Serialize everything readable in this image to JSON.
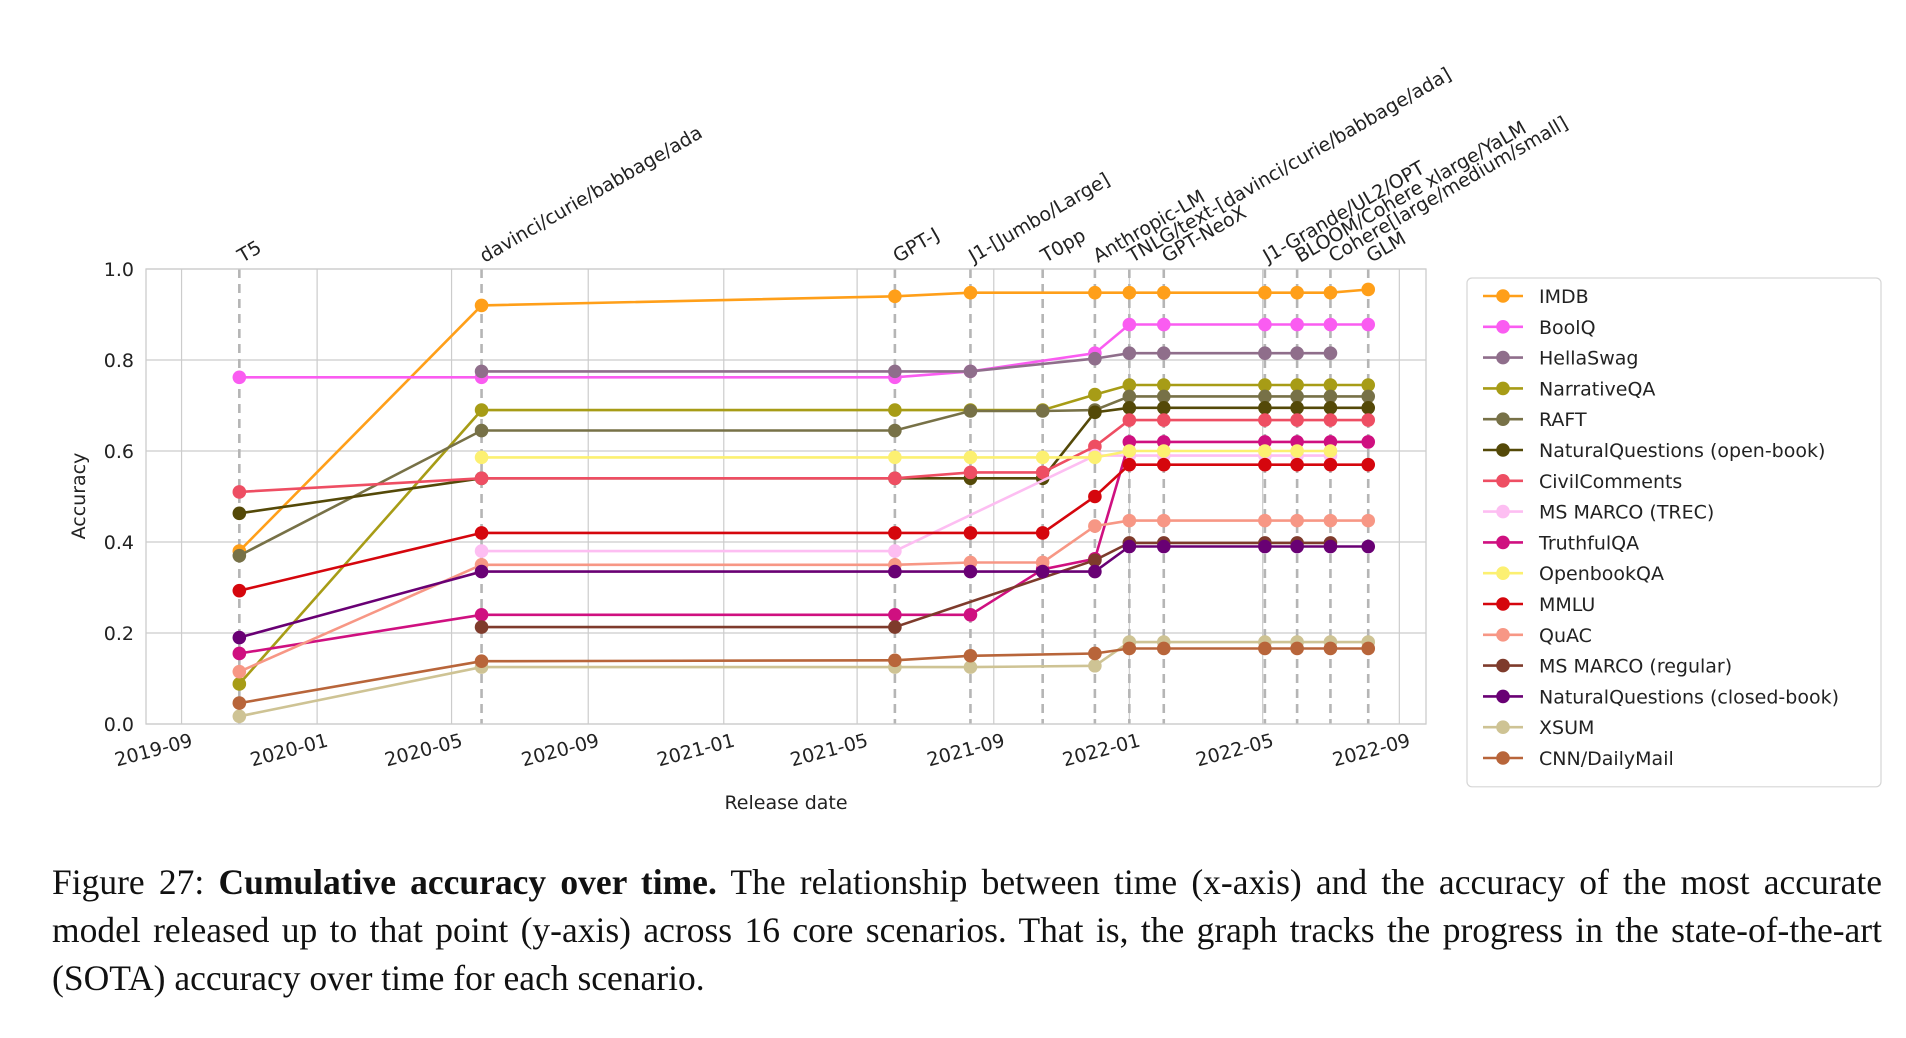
{
  "chart_data": {
    "type": "line",
    "xlabel": "Release date",
    "ylabel": "Accuracy",
    "ylim": [
      0.0,
      1.0
    ],
    "xlim": [
      "2019-07-31",
      "2022-09-25"
    ],
    "x_ticks": [
      "2019-09",
      "2020-01",
      "2020-05",
      "2020-09",
      "2021-01",
      "2021-05",
      "2021-09",
      "2022-01",
      "2022-05",
      "2022-09"
    ],
    "y_ticks": [
      "0.0",
      "0.2",
      "0.4",
      "0.6",
      "0.8",
      "1.0"
    ],
    "grid": true,
    "legend_position": "right",
    "model_releases": [
      {
        "label": "T5",
        "date": "2019-10-23"
      },
      {
        "label": "davinci/curie/babbage/ada",
        "date": "2020-05-28"
      },
      {
        "label": "GPT-J",
        "date": "2021-06-04"
      },
      {
        "label": "J1-[Jumbo/Large]",
        "date": "2021-08-11"
      },
      {
        "label": "T0pp",
        "date": "2021-10-15"
      },
      {
        "label": "Anthropic-LM",
        "date": "2021-12-01"
      },
      {
        "label": "TNLG/text-[davinci/curie/babbage/ada]",
        "date": "2022-01-01"
      },
      {
        "label": "GPT-NeoX",
        "date": "2022-02-01"
      },
      {
        "label": "J1-Grande/UL2/OPT",
        "date": "2022-05-03"
      },
      {
        "label": "BLOOM/Cohere xlarge/YaLM",
        "date": "2022-06-01"
      },
      {
        "label": "Cohere[large/medium/small]",
        "date": "2022-07-01"
      },
      {
        "label": "GLM",
        "date": "2022-08-04"
      }
    ],
    "series": [
      {
        "name": "IMDB",
        "color": "#ff9f19",
        "points": [
          [
            "2019-10-23",
            0.38
          ],
          [
            "2020-05-28",
            0.92
          ],
          [
            "2021-06-04",
            0.94
          ],
          [
            "2021-08-11",
            0.948
          ],
          [
            "2021-12-01",
            0.948
          ],
          [
            "2022-01-01",
            0.948
          ],
          [
            "2022-02-01",
            0.948
          ],
          [
            "2022-05-03",
            0.948
          ],
          [
            "2022-06-01",
            0.948
          ],
          [
            "2022-07-01",
            0.948
          ],
          [
            "2022-08-04",
            0.955
          ]
        ]
      },
      {
        "name": "BoolQ",
        "color": "#fa5cf1",
        "points": [
          [
            "2019-10-23",
            0.762
          ],
          [
            "2020-05-28",
            0.762
          ],
          [
            "2021-06-04",
            0.762
          ],
          [
            "2021-08-11",
            0.775
          ],
          [
            "2021-12-01",
            0.815
          ],
          [
            "2022-01-01",
            0.878
          ],
          [
            "2022-02-01",
            0.878
          ],
          [
            "2022-05-03",
            0.878
          ],
          [
            "2022-06-01",
            0.878
          ],
          [
            "2022-07-01",
            0.878
          ],
          [
            "2022-08-04",
            0.878
          ]
        ]
      },
      {
        "name": "HellaSwag",
        "color": "#8f6e8b",
        "points": [
          [
            "2020-05-28",
            0.775
          ],
          [
            "2021-06-04",
            0.775
          ],
          [
            "2021-08-11",
            0.775
          ],
          [
            "2021-12-01",
            0.803
          ],
          [
            "2022-01-01",
            0.815
          ],
          [
            "2022-02-01",
            0.815
          ],
          [
            "2022-05-03",
            0.815
          ],
          [
            "2022-06-01",
            0.815
          ],
          [
            "2022-07-01",
            0.815
          ]
        ]
      },
      {
        "name": "NarrativeQA",
        "color": "#a79c16",
        "points": [
          [
            "2019-10-23",
            0.088
          ],
          [
            "2020-05-28",
            0.69
          ],
          [
            "2021-06-04",
            0.69
          ],
          [
            "2021-08-11",
            0.69
          ],
          [
            "2021-10-15",
            0.69
          ],
          [
            "2021-12-01",
            0.724
          ],
          [
            "2022-01-01",
            0.745
          ],
          [
            "2022-02-01",
            0.745
          ],
          [
            "2022-05-03",
            0.745
          ],
          [
            "2022-06-01",
            0.745
          ],
          [
            "2022-07-01",
            0.745
          ],
          [
            "2022-08-04",
            0.745
          ]
        ]
      },
      {
        "name": "RAFT",
        "color": "#777147",
        "points": [
          [
            "2019-10-23",
            0.37
          ],
          [
            "2020-05-28",
            0.645
          ],
          [
            "2021-06-04",
            0.645
          ],
          [
            "2021-08-11",
            0.688
          ],
          [
            "2021-10-15",
            0.688
          ],
          [
            "2021-12-01",
            0.69
          ],
          [
            "2022-01-01",
            0.72
          ],
          [
            "2022-02-01",
            0.72
          ],
          [
            "2022-05-03",
            0.72
          ],
          [
            "2022-06-01",
            0.72
          ],
          [
            "2022-07-01",
            0.72
          ],
          [
            "2022-08-04",
            0.72
          ]
        ]
      },
      {
        "name": "NaturalQuestions (open-book)",
        "color": "#544908",
        "points": [
          [
            "2019-10-23",
            0.463
          ],
          [
            "2020-05-28",
            0.54
          ],
          [
            "2021-06-04",
            0.54
          ],
          [
            "2021-08-11",
            0.54
          ],
          [
            "2021-10-15",
            0.54
          ],
          [
            "2021-12-01",
            0.685
          ],
          [
            "2022-01-01",
            0.695
          ],
          [
            "2022-02-01",
            0.695
          ],
          [
            "2022-05-03",
            0.695
          ],
          [
            "2022-06-01",
            0.695
          ],
          [
            "2022-07-01",
            0.695
          ],
          [
            "2022-08-04",
            0.695
          ]
        ]
      },
      {
        "name": "CivilComments",
        "color": "#ee4e63",
        "points": [
          [
            "2019-10-23",
            0.51
          ],
          [
            "2020-05-28",
            0.54
          ],
          [
            "2021-06-04",
            0.54
          ],
          [
            "2021-08-11",
            0.553
          ],
          [
            "2021-10-15",
            0.553
          ],
          [
            "2021-12-01",
            0.61
          ],
          [
            "2022-01-01",
            0.668
          ],
          [
            "2022-02-01",
            0.668
          ],
          [
            "2022-05-03",
            0.668
          ],
          [
            "2022-06-01",
            0.668
          ],
          [
            "2022-07-01",
            0.668
          ],
          [
            "2022-08-04",
            0.668
          ]
        ]
      },
      {
        "name": "MS MARCO (TREC)",
        "color": "#fdbef2",
        "points": [
          [
            "2020-05-28",
            0.38
          ],
          [
            "2021-06-04",
            0.38
          ],
          [
            "2021-12-01",
            0.59
          ],
          [
            "2022-01-01",
            0.59
          ],
          [
            "2022-02-01",
            0.59
          ],
          [
            "2022-05-03",
            0.59
          ],
          [
            "2022-06-01",
            0.59
          ],
          [
            "2022-07-01",
            0.59
          ]
        ]
      },
      {
        "name": "TruthfulQA",
        "color": "#cf1080",
        "points": [
          [
            "2019-10-23",
            0.155
          ],
          [
            "2020-05-28",
            0.24
          ],
          [
            "2021-06-04",
            0.24
          ],
          [
            "2021-08-11",
            0.24
          ],
          [
            "2021-10-15",
            0.34
          ],
          [
            "2021-12-01",
            0.363
          ],
          [
            "2022-01-01",
            0.62
          ],
          [
            "2022-02-01",
            0.62
          ],
          [
            "2022-05-03",
            0.62
          ],
          [
            "2022-06-01",
            0.62
          ],
          [
            "2022-07-01",
            0.62
          ],
          [
            "2022-08-04",
            0.62
          ]
        ]
      },
      {
        "name": "OpenbookQA",
        "color": "#fcf071",
        "points": [
          [
            "2020-05-28",
            0.586
          ],
          [
            "2021-06-04",
            0.586
          ],
          [
            "2021-08-11",
            0.586
          ],
          [
            "2021-10-15",
            0.586
          ],
          [
            "2021-12-01",
            0.586
          ],
          [
            "2022-01-01",
            0.6
          ],
          [
            "2022-02-01",
            0.6
          ],
          [
            "2022-05-03",
            0.6
          ],
          [
            "2022-06-01",
            0.6
          ],
          [
            "2022-07-01",
            0.6
          ]
        ]
      },
      {
        "name": "MMLU",
        "color": "#d5060d",
        "points": [
          [
            "2019-10-23",
            0.293
          ],
          [
            "2020-05-28",
            0.42
          ],
          [
            "2021-06-04",
            0.42
          ],
          [
            "2021-08-11",
            0.42
          ],
          [
            "2021-10-15",
            0.42
          ],
          [
            "2021-12-01",
            0.5
          ],
          [
            "2022-01-01",
            0.57
          ],
          [
            "2022-02-01",
            0.57
          ],
          [
            "2022-05-03",
            0.57
          ],
          [
            "2022-06-01",
            0.57
          ],
          [
            "2022-07-01",
            0.57
          ],
          [
            "2022-08-04",
            0.57
          ]
        ]
      },
      {
        "name": "QuAC",
        "color": "#f79785",
        "points": [
          [
            "2019-10-23",
            0.115
          ],
          [
            "2020-05-28",
            0.35
          ],
          [
            "2021-06-04",
            0.35
          ],
          [
            "2021-08-11",
            0.355
          ],
          [
            "2021-10-15",
            0.355
          ],
          [
            "2021-12-01",
            0.435
          ],
          [
            "2022-01-01",
            0.447
          ],
          [
            "2022-02-01",
            0.447
          ],
          [
            "2022-05-03",
            0.447
          ],
          [
            "2022-06-01",
            0.447
          ],
          [
            "2022-07-01",
            0.447
          ],
          [
            "2022-08-04",
            0.447
          ]
        ]
      },
      {
        "name": "MS MARCO (regular)",
        "color": "#7e3b2c",
        "points": [
          [
            "2020-05-28",
            0.213
          ],
          [
            "2021-06-04",
            0.213
          ],
          [
            "2021-12-01",
            0.36
          ],
          [
            "2022-01-01",
            0.398
          ],
          [
            "2022-02-01",
            0.398
          ],
          [
            "2022-05-03",
            0.398
          ],
          [
            "2022-06-01",
            0.398
          ],
          [
            "2022-07-01",
            0.398
          ]
        ]
      },
      {
        "name": "NaturalQuestions (closed-book)",
        "color": "#690074",
        "points": [
          [
            "2019-10-23",
            0.19
          ],
          [
            "2020-05-28",
            0.335
          ],
          [
            "2021-06-04",
            0.335
          ],
          [
            "2021-08-11",
            0.335
          ],
          [
            "2021-10-15",
            0.335
          ],
          [
            "2021-12-01",
            0.335
          ],
          [
            "2022-01-01",
            0.39
          ],
          [
            "2022-02-01",
            0.39
          ],
          [
            "2022-05-03",
            0.39
          ],
          [
            "2022-06-01",
            0.39
          ],
          [
            "2022-07-01",
            0.39
          ],
          [
            "2022-08-04",
            0.39
          ]
        ]
      },
      {
        "name": "XSUM",
        "color": "#cec394",
        "points": [
          [
            "2019-10-23",
            0.017
          ],
          [
            "2020-05-28",
            0.125
          ],
          [
            "2021-06-04",
            0.125
          ],
          [
            "2021-08-11",
            0.125
          ],
          [
            "2021-12-01",
            0.128
          ],
          [
            "2022-01-01",
            0.18
          ],
          [
            "2022-02-01",
            0.18
          ],
          [
            "2022-05-03",
            0.18
          ],
          [
            "2022-06-01",
            0.18
          ],
          [
            "2022-07-01",
            0.18
          ],
          [
            "2022-08-04",
            0.18
          ]
        ]
      },
      {
        "name": "CNN/DailyMail",
        "color": "#b8653a",
        "points": [
          [
            "2019-10-23",
            0.046
          ],
          [
            "2020-05-28",
            0.138
          ],
          [
            "2021-06-04",
            0.14
          ],
          [
            "2021-08-11",
            0.15
          ],
          [
            "2021-12-01",
            0.155
          ],
          [
            "2022-01-01",
            0.166
          ],
          [
            "2022-02-01",
            0.166
          ],
          [
            "2022-05-03",
            0.166
          ],
          [
            "2022-06-01",
            0.166
          ],
          [
            "2022-07-01",
            0.166
          ],
          [
            "2022-08-04",
            0.166
          ]
        ]
      }
    ]
  },
  "caption": {
    "label": "Figure 27:",
    "title": "Cumulative accuracy over time.",
    "text": "The relationship between time (x-axis) and the accuracy of the most accurate model released up to that point (y-axis) across 16 core scenarios. That is, the graph tracks the progress in the state-of-the-art (SOTA) accuracy over time for each scenario."
  }
}
